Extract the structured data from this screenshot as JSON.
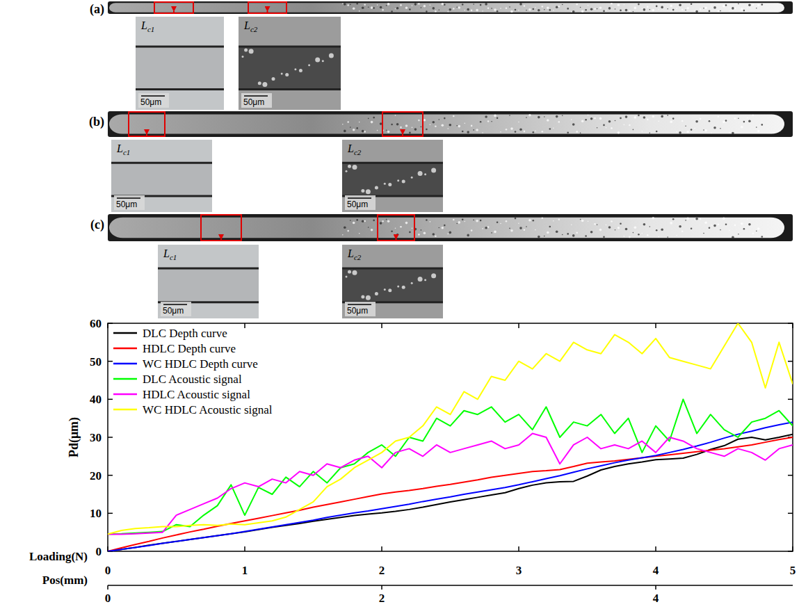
{
  "chart_data": {
    "type": "line",
    "xlabel": "Loading(N)",
    "ylabel": "Pd(μm)",
    "x": [
      0,
      0.1,
      0.2,
      0.3,
      0.4,
      0.5,
      0.6,
      0.7,
      0.8,
      0.9,
      1,
      1.1,
      1.2,
      1.3,
      1.4,
      1.5,
      1.6,
      1.7,
      1.8,
      1.9,
      2,
      2.1,
      2.2,
      2.3,
      2.4,
      2.5,
      2.6,
      2.7,
      2.8,
      2.9,
      3,
      3.1,
      3.2,
      3.3,
      3.4,
      3.5,
      3.6,
      3.7,
      3.8,
      3.9,
      4,
      4.1,
      4.2,
      4.3,
      4.4,
      4.5,
      4.6,
      4.7,
      4.8,
      4.9,
      5
    ],
    "xlim": [
      0,
      5
    ],
    "xticks": [
      0,
      1,
      2,
      3,
      4,
      5
    ],
    "ylim": [
      0,
      60
    ],
    "yticks": [
      0,
      10,
      20,
      30,
      40,
      50,
      60
    ],
    "x2label": "Pos(mm)",
    "x2lim": [
      0,
      5
    ],
    "x2ticks": [
      0,
      2,
      4
    ],
    "legend": "upper left",
    "series": [
      {
        "name": "DLC Depth curve",
        "color": "#000000",
        "values": [
          0,
          0.5,
          1,
          1.6,
          2.1,
          2.6,
          3.1,
          3.6,
          4.1,
          4.6,
          5.1,
          5.7,
          6.3,
          6.8,
          7.3,
          7.9,
          8.4,
          8.9,
          9.4,
          9.8,
          10.1,
          10.5,
          11,
          11.6,
          12.3,
          13,
          13.6,
          14.2,
          14.8,
          15.4,
          16.5,
          17.4,
          18,
          18.3,
          18.4,
          19.8,
          21.4,
          22.3,
          23,
          23.5,
          24.1,
          24.3,
          24.5,
          25.5,
          26.8,
          27.8,
          29.5,
          30,
          29.3,
          30,
          30.8
        ]
      },
      {
        "name": "HDLC Depth curve",
        "color": "#ff0000",
        "values": [
          0,
          0.9,
          1.8,
          2.6,
          3.5,
          4.3,
          5.1,
          5.8,
          6.6,
          7.3,
          8,
          8.7,
          9.4,
          10.1,
          10.8,
          11.6,
          12.3,
          13,
          13.7,
          14.4,
          15.1,
          15.6,
          16,
          16.5,
          17.1,
          17.6,
          18.2,
          18.8,
          19.5,
          20,
          20.5,
          21,
          21.2,
          21.5,
          22.3,
          23.2,
          23.5,
          23.8,
          24.2,
          24.6,
          25,
          25.4,
          25.8,
          26.2,
          26.6,
          27,
          27.5,
          28,
          28.7,
          29.4,
          30
        ]
      },
      {
        "name": "WC HDLC Depth curve",
        "color": "#0000ff",
        "values": [
          0,
          0.5,
          1,
          1.5,
          2.1,
          2.6,
          3.1,
          3.6,
          4.1,
          4.6,
          5.2,
          5.8,
          6.4,
          7,
          7.6,
          8.2,
          8.9,
          9.5,
          10.1,
          10.6,
          11.2,
          11.8,
          12.4,
          13.1,
          13.7,
          14.3,
          15,
          15.6,
          16.2,
          16.8,
          17.5,
          18.3,
          19.1,
          19.9,
          20.8,
          21.7,
          22.5,
          23.3,
          24,
          24.6,
          25.2,
          26,
          26.8,
          27.7,
          28.7,
          29.8,
          30.8,
          31.6,
          32.5,
          33.3,
          34
        ]
      },
      {
        "name": "DLC Acoustic signal",
        "color": "#00ff00",
        "values": [
          4.5,
          4.6,
          4.8,
          5,
          5.2,
          7,
          6.5,
          9.5,
          12,
          17.5,
          9.5,
          16.8,
          15,
          19.5,
          17,
          21,
          18,
          22,
          23,
          26,
          28,
          25,
          30,
          29,
          35,
          33,
          37,
          36,
          38,
          34,
          36,
          32,
          38,
          30,
          34,
          33,
          36,
          31,
          35,
          26,
          33,
          29,
          40,
          31,
          36,
          32,
          30,
          34,
          35,
          37,
          33
        ]
      },
      {
        "name": "HDLC Acoustic signal",
        "color": "#ff00ff",
        "values": [
          4.5,
          4.5,
          4.6,
          4.8,
          5,
          9.5,
          11,
          12.5,
          14,
          16.5,
          18,
          17,
          19,
          18,
          21,
          20,
          23,
          22,
          24,
          25,
          22,
          26,
          27,
          25,
          28,
          26,
          27,
          28,
          29,
          27,
          28,
          31,
          30,
          23,
          28,
          30,
          27,
          28,
          27,
          29,
          26,
          30,
          29,
          27,
          26,
          25,
          27,
          26,
          24,
          27,
          28
        ]
      },
      {
        "name": "WC HDLC Acoustic signal",
        "color": "#ffff00",
        "values": [
          4.5,
          5.5,
          6,
          6.2,
          6.5,
          6.5,
          6.8,
          7,
          6.8,
          7.2,
          7,
          7.5,
          8,
          9,
          11,
          13,
          17,
          19,
          22,
          24,
          26,
          29,
          30,
          33,
          38,
          36,
          42,
          40,
          46,
          45,
          50,
          48,
          52,
          50,
          55,
          53,
          52,
          57,
          55,
          52,
          56,
          51,
          50,
          49,
          48,
          54,
          60,
          55,
          43,
          55,
          44
        ]
      }
    ]
  },
  "panels": [
    {
      "letter": "(a)",
      "insets": [
        {
          "label_main": "L",
          "label_sub": "c1",
          "scale_bar": "50μm"
        },
        {
          "label_main": "L",
          "label_sub": "c2",
          "scale_bar": "50μm"
        }
      ]
    },
    {
      "letter": "(b)",
      "insets": [
        {
          "label_main": "L",
          "label_sub": "c1",
          "scale_bar": "50μm"
        },
        {
          "label_main": "L",
          "label_sub": "c2",
          "scale_bar": "50μm"
        }
      ]
    },
    {
      "letter": "(c)",
      "insets": [
        {
          "label_main": "L",
          "label_sub": "c1",
          "scale_bar": "50μm"
        },
        {
          "label_main": "L",
          "label_sub": "c2",
          "scale_bar": "50μm"
        }
      ]
    }
  ]
}
